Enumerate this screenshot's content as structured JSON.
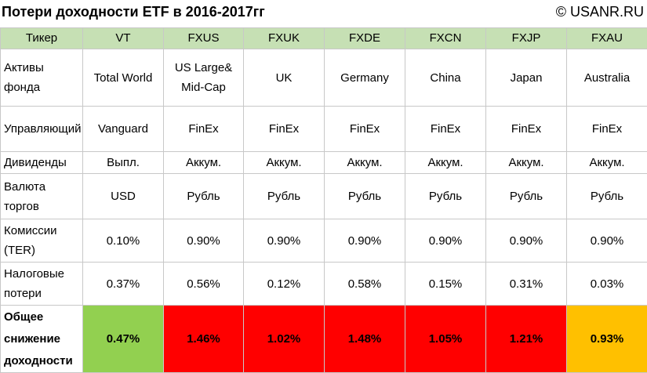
{
  "header": {
    "title": "Потери доходности ETF в 2016-2017гг",
    "copyright": "© USANR.RU"
  },
  "table": {
    "corner": "Тикер",
    "tickers": [
      "VT",
      "FXUS",
      "FXUK",
      "FXDE",
      "FXCN",
      "FXJP",
      "FXAU"
    ],
    "rows": [
      {
        "label": "Активы фонда",
        "cells": [
          "Total World",
          "US Large& Mid-Cap",
          "UK",
          "Germany",
          "China",
          "Japan",
          "Australia"
        ]
      },
      {
        "label": "Управляющий",
        "cells": [
          "Vanguard",
          "FinEx",
          "FinEx",
          "FinEx",
          "FinEx",
          "FinEx",
          "FinEx"
        ]
      },
      {
        "label": "Дивиденды",
        "cells": [
          "Выпл.",
          "Аккум.",
          "Аккум.",
          "Аккум.",
          "Аккум.",
          "Аккум.",
          "Аккум."
        ]
      },
      {
        "label": "Валюта торгов",
        "cells": [
          "USD",
          "Рубль",
          "Рубль",
          "Рубль",
          "Рубль",
          "Рубль",
          "Рубль"
        ]
      },
      {
        "label": "Комиссии (TER)",
        "cells": [
          "0.10%",
          "0.90%",
          "0.90%",
          "0.90%",
          "0.90%",
          "0.90%",
          "0.90%"
        ]
      },
      {
        "label": "Налоговые потери",
        "cells": [
          "0.37%",
          "0.56%",
          "0.12%",
          "0.58%",
          "0.15%",
          "0.31%",
          "0.03%"
        ]
      }
    ],
    "total": {
      "label": "Общее снижение доходности",
      "cells": [
        "0.47%",
        "1.46%",
        "1.02%",
        "1.48%",
        "1.05%",
        "1.21%",
        "0.93%"
      ],
      "colors": [
        "#92d050",
        "#ff0000",
        "#ff0000",
        "#ff0000",
        "#ff0000",
        "#ff0000",
        "#ffc000"
      ]
    }
  }
}
